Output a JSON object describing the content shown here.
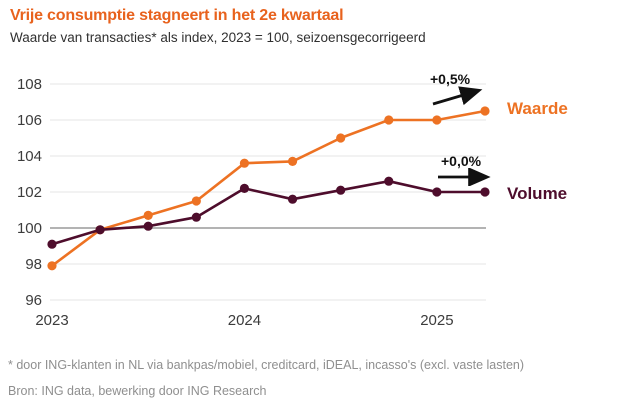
{
  "header": {
    "title": "Vrije consumptie stagneert in het 2e kwartaal",
    "subtitle": "Waarde van transacties* als index, 2023 = 100, seizoensgecorrigeerd"
  },
  "chart_data": {
    "type": "line",
    "title": "Vrije consumptie stagneert in het 2e kwartaal",
    "subtitle": "Waarde van transacties* als index, 2023 = 100, seizoensgecorrigeerd",
    "categories": [
      "2023Q1",
      "2023Q2",
      "2023Q3",
      "2023Q4",
      "2024Q1",
      "2024Q2",
      "2024Q3",
      "2024Q4",
      "2025Q1",
      "2025Q2"
    ],
    "series": [
      {
        "id": "waarde",
        "name": "Waarde",
        "color": "#ed7223",
        "annotation": "+0,5%",
        "values": [
          97.9,
          99.9,
          100.7,
          101.5,
          103.6,
          103.7,
          105.0,
          106.0,
          106.0,
          106.5
        ]
      },
      {
        "id": "volume",
        "name": "Volume",
        "color": "#4e0d2c",
        "annotation": "+0,0%",
        "values": [
          99.1,
          99.9,
          100.1,
          100.6,
          102.2,
          101.6,
          102.1,
          102.6,
          102.0,
          102.0
        ]
      }
    ],
    "y_ticks": [
      96,
      98,
      100,
      102,
      104,
      106,
      108
    ],
    "ylim": [
      96,
      108
    ],
    "baseline": 100,
    "x_ticks": [
      {
        "label": "2023",
        "index": 0
      },
      {
        "label": "2024",
        "index": 4
      },
      {
        "label": "2025",
        "index": 8
      }
    ],
    "grid": true,
    "legend_position": "right-of-line-end"
  },
  "footnotes": {
    "line1": "* door ING-klanten in NL via bankpas/mobiel, creditcard, iDEAL, incasso's (excl. vaste lasten)",
    "line2": "Bron: ING data, bewerking door ING Research"
  },
  "colors": {
    "title_orange": "#e8621d",
    "line_orange": "#ed7223",
    "line_dark": "#4e0d2c",
    "gridline": "#eaeaea",
    "baseline_gray": "#b3b3b3",
    "axis_text": "#3c3c3c",
    "subtitle_text": "#303030",
    "annotation_black": "#111111",
    "footnote_gray": "#8f8f8f"
  }
}
